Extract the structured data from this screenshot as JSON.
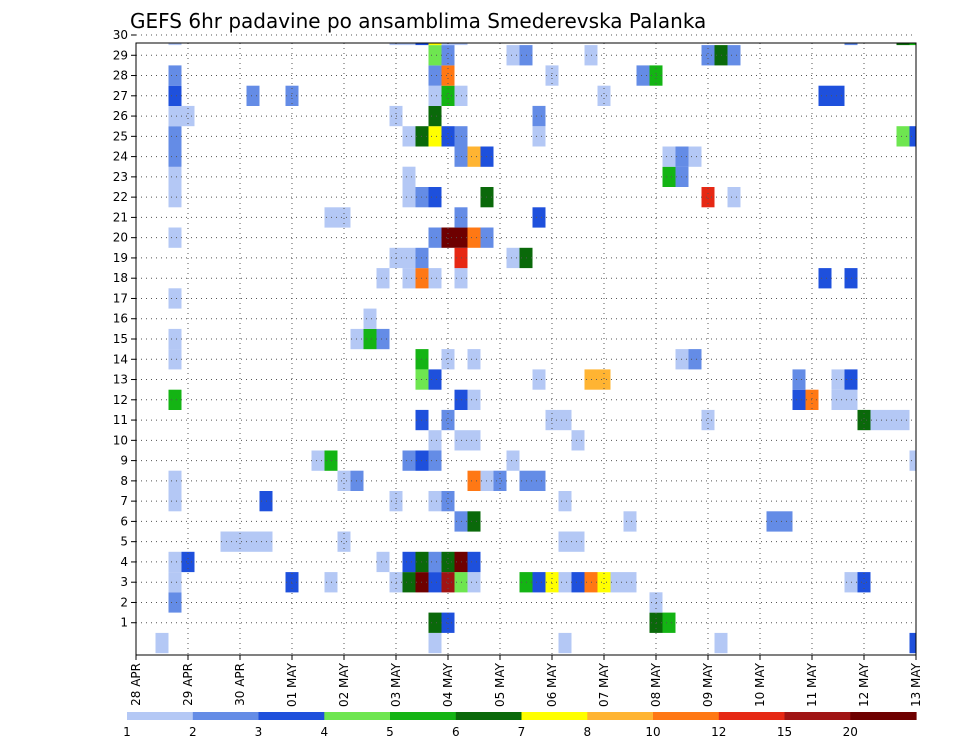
{
  "chart_data": {
    "type": "heatmap",
    "title": "GEFS 6hr padavine po ansamblima Smederevska Palanka",
    "x_tick_labels": [
      "28 APR",
      "29 APR",
      "30 APR",
      "01 MAY",
      "02 MAY",
      "03 MAY",
      "04 MAY",
      "05 MAY",
      "06 MAY",
      "07 MAY",
      "08 MAY",
      "09 MAY",
      "10 MAY",
      "11 MAY",
      "12 MAY",
      "13 MAY"
    ],
    "y_tick_labels": [
      "1",
      "2",
      "3",
      "4",
      "5",
      "6",
      "7",
      "8",
      "9",
      "10",
      "11",
      "12",
      "13",
      "14",
      "15",
      "16",
      "17",
      "18",
      "19",
      "20",
      "21",
      "22",
      "23",
      "24",
      "25",
      "26",
      "27",
      "28",
      "29",
      "30"
    ],
    "x_steps": 61,
    "y_members": [
      0,
      30
    ],
    "grid": true,
    "colorbar": {
      "levels": [
        "1",
        "2",
        "3",
        "4",
        "5",
        "6",
        "7",
        "8",
        "10",
        "12",
        "15",
        "20"
      ],
      "colors": [
        "#b4c8f5",
        "#648ce6",
        "#1e50dc",
        "#6ee650",
        "#14b414",
        "#0a690a",
        "#ffff00",
        "#ffb432",
        "#ff7814",
        "#e62814",
        "#a01414",
        "#6e0000"
      ]
    },
    "cells": [
      [
        2,
        0,
        0
      ],
      [
        23,
        0,
        0
      ],
      [
        33,
        0,
        0
      ],
      [
        45,
        0,
        0
      ],
      [
        60,
        0,
        2
      ],
      [
        23,
        1,
        5
      ],
      [
        24,
        1,
        2
      ],
      [
        40,
        1,
        5
      ],
      [
        41,
        1,
        4
      ],
      [
        3,
        2,
        1
      ],
      [
        40,
        2,
        0
      ],
      [
        3,
        3,
        0
      ],
      [
        12,
        3,
        2
      ],
      [
        15,
        3,
        0
      ],
      [
        20,
        3,
        0
      ],
      [
        21,
        3,
        5
      ],
      [
        22,
        3,
        11
      ],
      [
        23,
        3,
        2
      ],
      [
        24,
        3,
        10
      ],
      [
        25,
        3,
        3
      ],
      [
        26,
        3,
        0
      ],
      [
        30,
        3,
        4
      ],
      [
        31,
        3,
        2
      ],
      [
        32,
        3,
        6
      ],
      [
        33,
        3,
        0
      ],
      [
        34,
        3,
        2
      ],
      [
        35,
        3,
        8
      ],
      [
        36,
        3,
        6
      ],
      [
        37,
        3,
        0
      ],
      [
        38,
        3,
        0
      ],
      [
        55,
        3,
        0
      ],
      [
        56,
        3,
        2
      ],
      [
        3,
        4,
        0
      ],
      [
        4,
        4,
        2
      ],
      [
        19,
        4,
        0
      ],
      [
        21,
        4,
        2
      ],
      [
        22,
        4,
        5
      ],
      [
        23,
        4,
        1
      ],
      [
        24,
        4,
        5
      ],
      [
        25,
        4,
        11
      ],
      [
        26,
        4,
        2
      ],
      [
        7,
        5,
        0
      ],
      [
        8,
        5,
        0
      ],
      [
        9,
        5,
        0
      ],
      [
        10,
        5,
        0
      ],
      [
        16,
        5,
        0
      ],
      [
        33,
        5,
        0
      ],
      [
        34,
        5,
        0
      ],
      [
        25,
        6,
        1
      ],
      [
        26,
        6,
        5
      ],
      [
        38,
        6,
        0
      ],
      [
        49,
        6,
        1
      ],
      [
        50,
        6,
        1
      ],
      [
        3,
        7,
        0
      ],
      [
        10,
        7,
        2
      ],
      [
        20,
        7,
        0
      ],
      [
        23,
        7,
        0
      ],
      [
        24,
        7,
        1
      ],
      [
        33,
        7,
        0
      ],
      [
        3,
        8,
        0
      ],
      [
        16,
        8,
        0
      ],
      [
        17,
        8,
        1
      ],
      [
        26,
        8,
        8
      ],
      [
        27,
        8,
        0
      ],
      [
        28,
        8,
        1
      ],
      [
        30,
        8,
        1
      ],
      [
        31,
        8,
        1
      ],
      [
        14,
        9,
        0
      ],
      [
        15,
        9,
        4
      ],
      [
        21,
        9,
        1
      ],
      [
        22,
        9,
        2
      ],
      [
        23,
        9,
        1
      ],
      [
        29,
        9,
        0
      ],
      [
        60,
        9,
        0
      ],
      [
        23,
        10,
        0
      ],
      [
        25,
        10,
        0
      ],
      [
        26,
        10,
        0
      ],
      [
        34,
        10,
        0
      ],
      [
        22,
        11,
        2
      ],
      [
        24,
        11,
        1
      ],
      [
        32,
        11,
        0
      ],
      [
        33,
        11,
        0
      ],
      [
        44,
        11,
        0
      ],
      [
        56,
        11,
        5
      ],
      [
        57,
        11,
        0
      ],
      [
        58,
        11,
        0
      ],
      [
        59,
        11,
        0
      ],
      [
        3,
        12,
        4
      ],
      [
        25,
        12,
        2
      ],
      [
        26,
        12,
        0
      ],
      [
        51,
        12,
        2
      ],
      [
        52,
        12,
        8
      ],
      [
        54,
        12,
        0
      ],
      [
        55,
        12,
        0
      ],
      [
        22,
        13,
        3
      ],
      [
        23,
        13,
        2
      ],
      [
        31,
        13,
        0
      ],
      [
        35,
        13,
        7
      ],
      [
        36,
        13,
        7
      ],
      [
        51,
        13,
        1
      ],
      [
        54,
        13,
        0
      ],
      [
        55,
        13,
        2
      ],
      [
        3,
        14,
        0
      ],
      [
        22,
        14,
        4
      ],
      [
        24,
        14,
        0
      ],
      [
        26,
        14,
        0
      ],
      [
        42,
        14,
        0
      ],
      [
        43,
        14,
        1
      ],
      [
        3,
        15,
        0
      ],
      [
        17,
        15,
        0
      ],
      [
        18,
        15,
        4
      ],
      [
        19,
        15,
        1
      ],
      [
        18,
        16,
        0
      ],
      [
        3,
        17,
        0
      ],
      [
        19,
        18,
        0
      ],
      [
        21,
        18,
        0
      ],
      [
        22,
        18,
        8
      ],
      [
        23,
        18,
        0
      ],
      [
        25,
        18,
        0
      ],
      [
        53,
        18,
        2
      ],
      [
        55,
        18,
        2
      ],
      [
        20,
        19,
        0
      ],
      [
        21,
        19,
        0
      ],
      [
        22,
        19,
        1
      ],
      [
        25,
        19,
        9
      ],
      [
        29,
        19,
        0
      ],
      [
        30,
        19,
        5
      ],
      [
        3,
        20,
        0
      ],
      [
        23,
        20,
        1
      ],
      [
        24,
        20,
        11
      ],
      [
        25,
        20,
        11
      ],
      [
        26,
        20,
        8
      ],
      [
        27,
        20,
        1
      ],
      [
        15,
        21,
        0
      ],
      [
        16,
        21,
        0
      ],
      [
        25,
        21,
        1
      ],
      [
        31,
        21,
        2
      ],
      [
        3,
        22,
        0
      ],
      [
        21,
        22,
        0
      ],
      [
        22,
        22,
        1
      ],
      [
        23,
        22,
        2
      ],
      [
        27,
        22,
        5
      ],
      [
        44,
        22,
        9
      ],
      [
        46,
        22,
        0
      ],
      [
        3,
        23,
        0
      ],
      [
        21,
        23,
        0
      ],
      [
        41,
        23,
        4
      ],
      [
        42,
        23,
        1
      ],
      [
        3,
        24,
        1
      ],
      [
        25,
        24,
        1
      ],
      [
        26,
        24,
        7
      ],
      [
        27,
        24,
        2
      ],
      [
        41,
        24,
        0
      ],
      [
        42,
        24,
        1
      ],
      [
        43,
        24,
        0
      ],
      [
        3,
        25,
        1
      ],
      [
        21,
        25,
        0
      ],
      [
        22,
        25,
        5
      ],
      [
        23,
        25,
        6
      ],
      [
        24,
        25,
        2
      ],
      [
        25,
        25,
        1
      ],
      [
        31,
        25,
        0
      ],
      [
        59,
        25,
        3
      ],
      [
        60,
        25,
        2
      ],
      [
        3,
        26,
        0
      ],
      [
        4,
        26,
        0
      ],
      [
        20,
        26,
        0
      ],
      [
        23,
        26,
        5
      ],
      [
        31,
        26,
        1
      ],
      [
        3,
        27,
        2
      ],
      [
        9,
        27,
        1
      ],
      [
        12,
        27,
        1
      ],
      [
        23,
        27,
        0
      ],
      [
        24,
        27,
        4
      ],
      [
        25,
        27,
        0
      ],
      [
        36,
        27,
        0
      ],
      [
        53,
        27,
        2
      ],
      [
        54,
        27,
        2
      ],
      [
        3,
        28,
        1
      ],
      [
        23,
        28,
        1
      ],
      [
        24,
        28,
        8
      ],
      [
        32,
        28,
        0
      ],
      [
        39,
        28,
        1
      ],
      [
        40,
        28,
        4
      ],
      [
        23,
        29,
        3
      ],
      [
        24,
        29,
        1
      ],
      [
        29,
        29,
        0
      ],
      [
        30,
        29,
        1
      ],
      [
        35,
        29,
        0
      ],
      [
        44,
        29,
        1
      ],
      [
        45,
        29,
        5
      ],
      [
        46,
        29,
        1
      ],
      [
        3,
        30,
        0
      ],
      [
        20,
        30,
        0
      ],
      [
        21,
        30,
        0
      ],
      [
        22,
        30,
        2
      ],
      [
        23,
        30,
        6
      ],
      [
        24,
        30,
        0
      ],
      [
        25,
        30,
        0
      ],
      [
        55,
        30,
        1
      ],
      [
        59,
        30,
        5
      ],
      [
        60,
        30,
        4
      ]
    ]
  }
}
